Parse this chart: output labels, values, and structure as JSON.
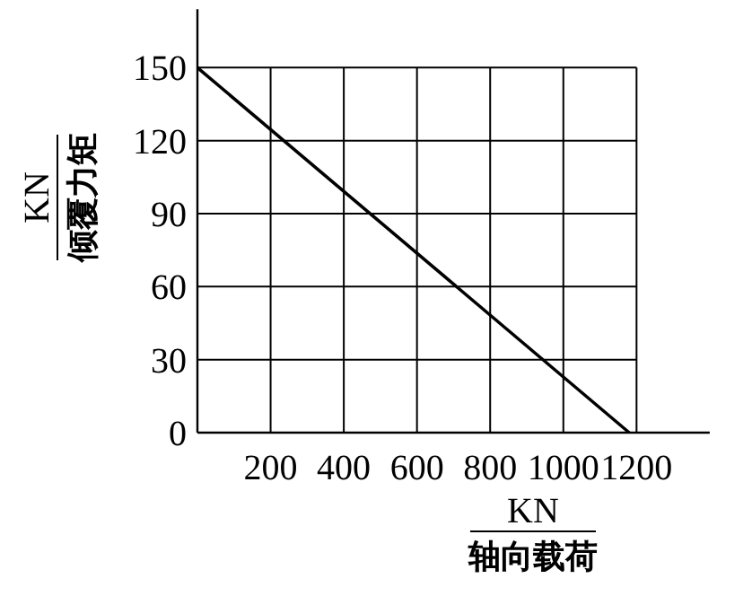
{
  "chart_data": {
    "type": "line",
    "xlabel": "KN\n轴向载荷",
    "ylabel": "KN\n倾覆力矩",
    "x": [
      0,
      1180
    ],
    "series": [
      {
        "color": "#000000",
        "values": [
          150,
          0
        ]
      }
    ],
    "xlim": [
      0,
      1400
    ],
    "ylim": [
      0,
      174
    ],
    "xticks": [
      {
        "value": 0,
        "label": null
      },
      200,
      400,
      600,
      800,
      1000,
      1200
    ],
    "yticks": [
      0,
      30,
      60,
      90,
      120,
      150
    ],
    "grid": true,
    "marker": "none",
    "line_style": "solid"
  }
}
